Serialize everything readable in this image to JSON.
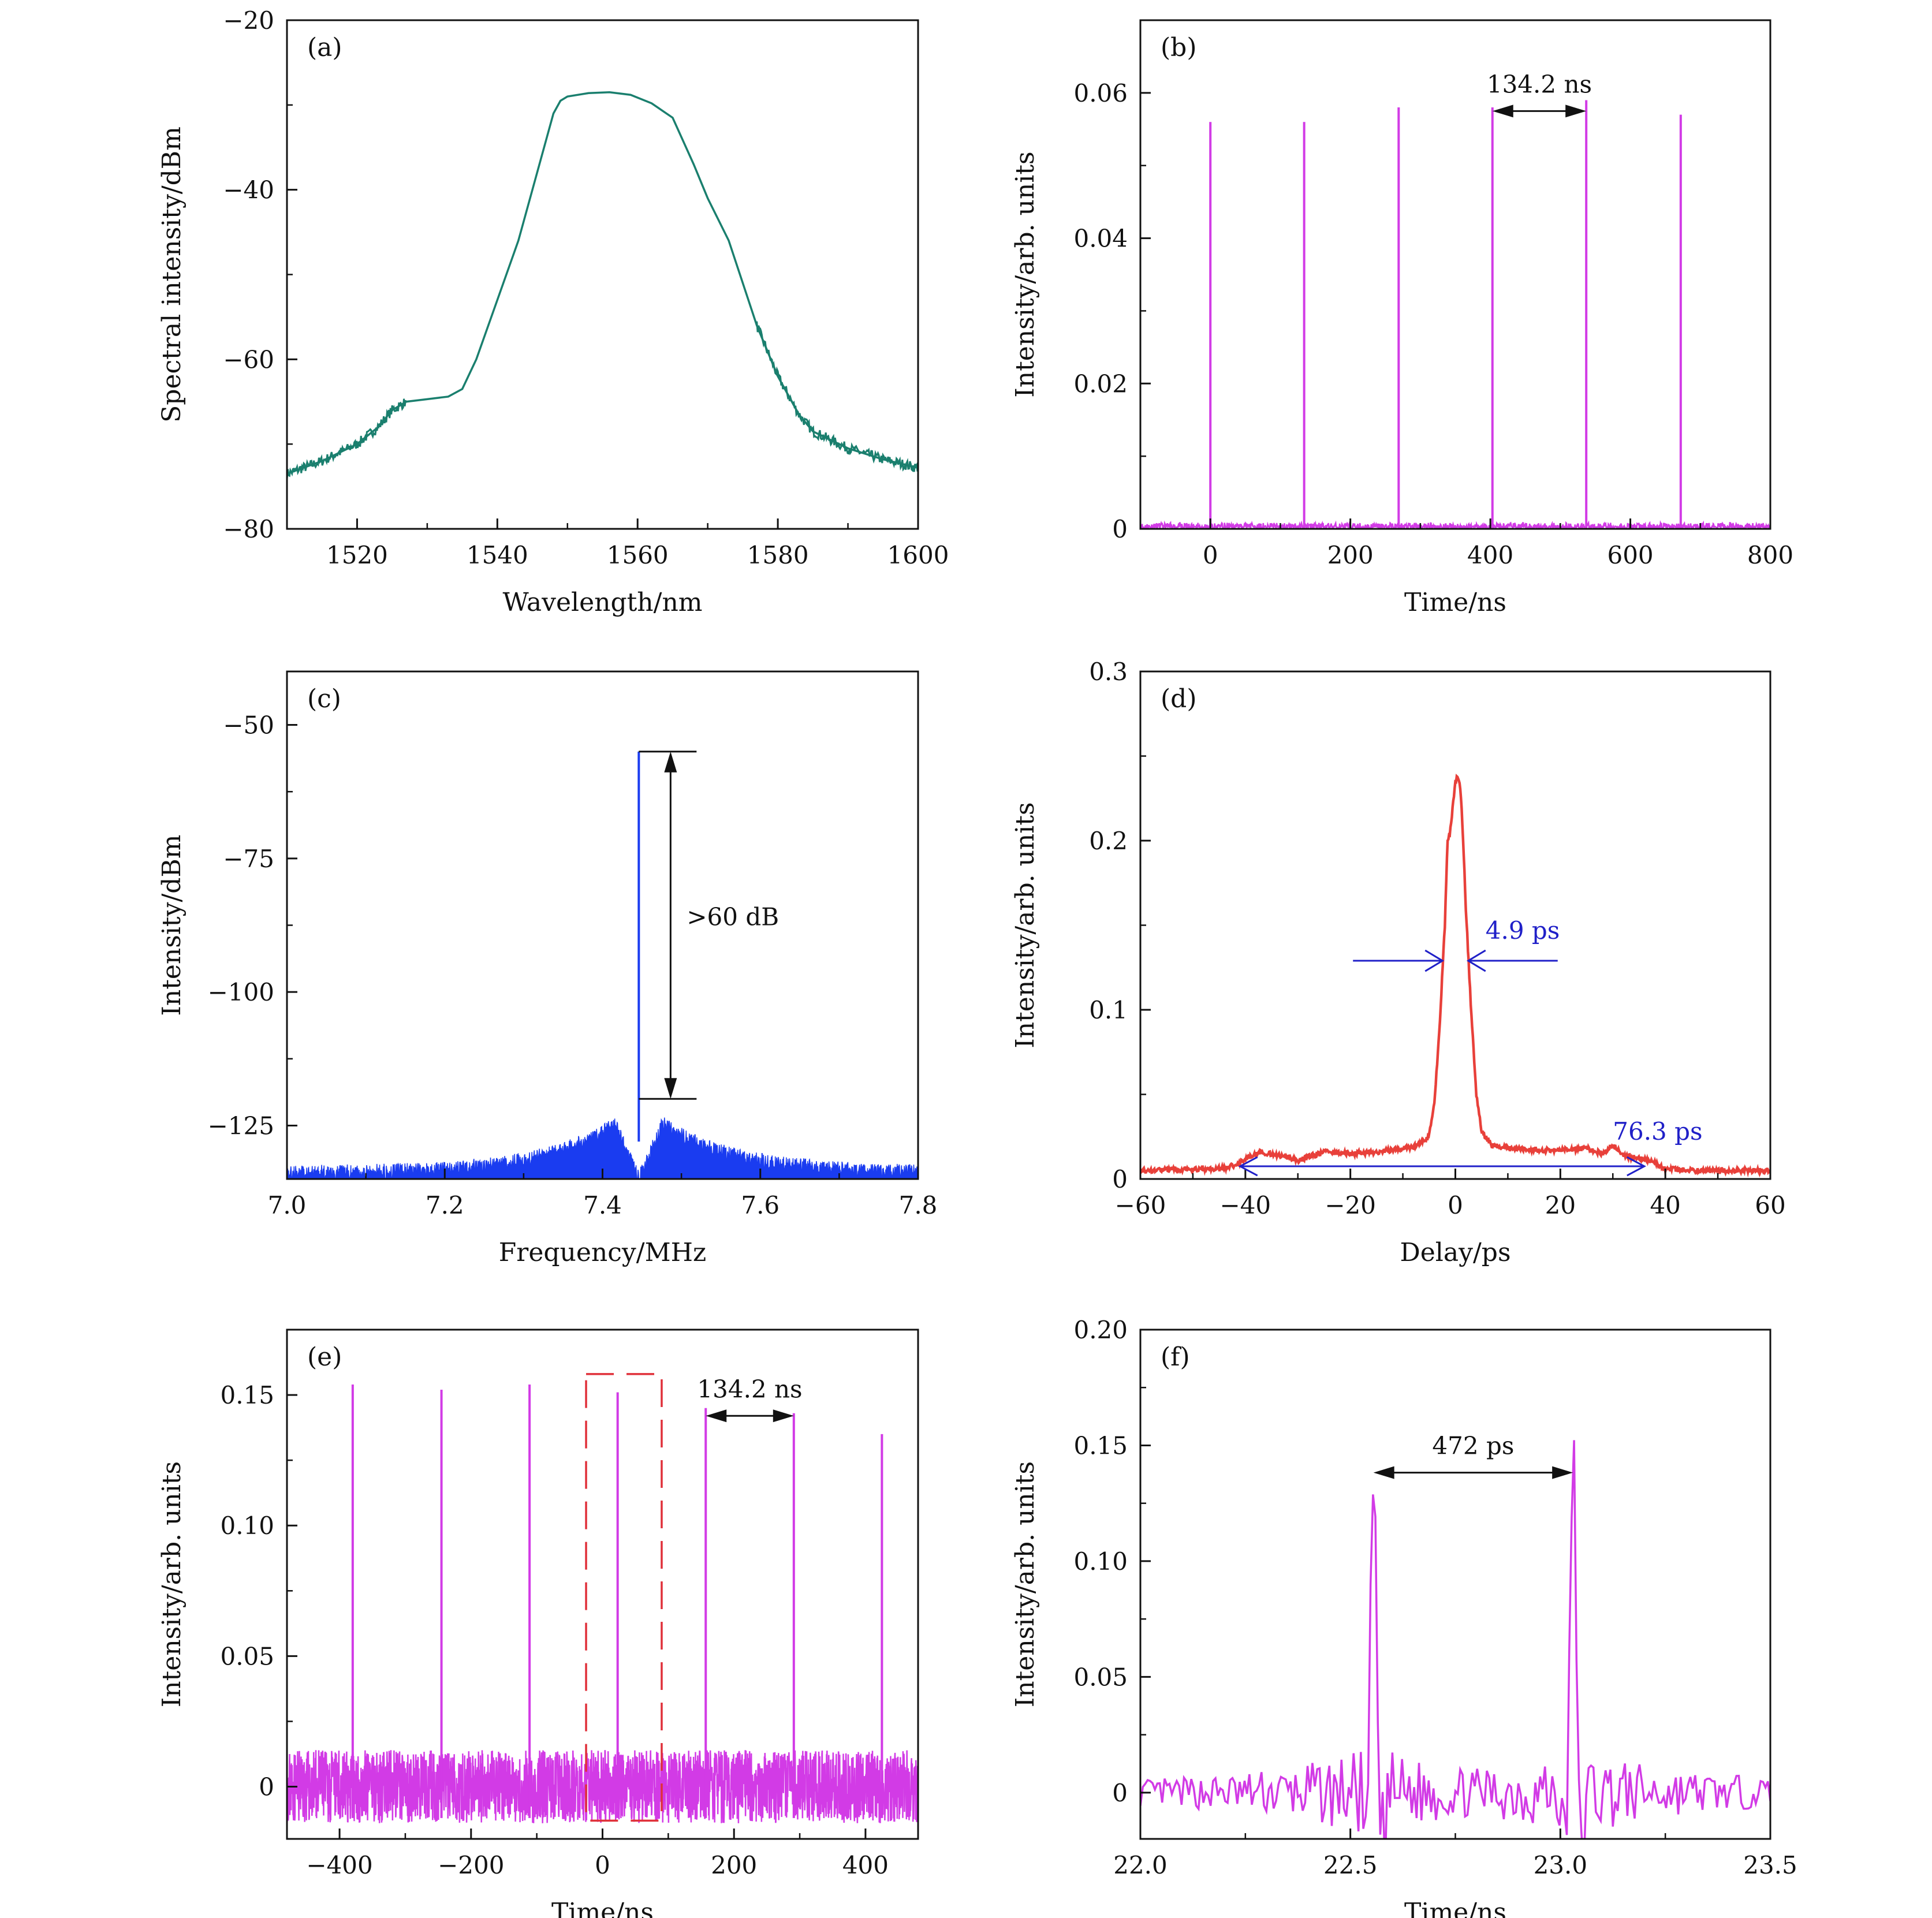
{
  "chart_data": [
    {
      "panel": "(a)",
      "type": "line",
      "xlabel": "Wavelength/nm",
      "ylabel": "Spectral intensity/dBm",
      "xlim": [
        1510,
        1600
      ],
      "ylim": [
        -80,
        -20
      ],
      "xticks": [
        1520,
        1540,
        1560,
        1580,
        1600
      ],
      "yticks": [
        -80,
        -60,
        -40,
        -20
      ],
      "ytick_labels": [
        "−80",
        "−60",
        "−40",
        "−20"
      ],
      "color": "#1a7f6e",
      "x": [
        1510,
        1515,
        1520,
        1523,
        1525,
        1527,
        1530,
        1533,
        1535,
        1537,
        1540,
        1543,
        1545,
        1547,
        1548,
        1549,
        1550,
        1553,
        1556,
        1559,
        1562,
        1565,
        1568,
        1570,
        1573,
        1575,
        1577,
        1580,
        1583,
        1585,
        1590,
        1595,
        1600
      ],
      "y": [
        -73.5,
        -72,
        -70,
        -68,
        -66,
        -65,
        -64.7,
        -64.4,
        -63.5,
        -60,
        -53,
        -46,
        -40,
        -34,
        -31,
        -29.5,
        -29,
        -28.6,
        -28.5,
        -28.8,
        -29.8,
        -31.5,
        -37,
        -41,
        -46,
        -51,
        -56,
        -62,
        -66.5,
        -68.5,
        -70.5,
        -71.8,
        -72.8
      ]
    },
    {
      "panel": "(b)",
      "type": "line",
      "xlabel": "Time/ns",
      "ylabel": "Intensity/arb. units",
      "xlim": [
        -100,
        800
      ],
      "ylim": [
        0,
        0.07
      ],
      "xticks": [
        0,
        200,
        400,
        600,
        800
      ],
      "yticks": [
        0,
        0.02,
        0.04,
        0.06
      ],
      "ytick_labels": [
        "0",
        "0.02",
        "0.04",
        "0.06"
      ],
      "color": "#d23be6",
      "peaks": [
        {
          "x": 0,
          "y": 0.056
        },
        {
          "x": 134,
          "y": 0.056
        },
        {
          "x": 269,
          "y": 0.058
        },
        {
          "x": 403,
          "y": 0.058
        },
        {
          "x": 537,
          "y": 0.059
        },
        {
          "x": 672,
          "y": 0.057
        }
      ],
      "noise_level": 0.0008,
      "annotation": {
        "text": "134.2 ns",
        "x1": 403,
        "x2": 537,
        "y": 0.0575
      }
    },
    {
      "panel": "(c)",
      "type": "area",
      "xlabel": "Frequency/MHz",
      "ylabel": "Intensity/dBm",
      "xlim": [
        7.0,
        7.8
      ],
      "ylim": [
        -135,
        -40
      ],
      "xticks": [
        7.0,
        7.2,
        7.4,
        7.6,
        7.8
      ],
      "xtick_labels": [
        "7.0",
        "7.2",
        "7.4",
        "7.6",
        "7.8"
      ],
      "yticks": [
        -125,
        -100,
        -75,
        -50
      ],
      "ytick_labels": [
        "−125",
        "−100",
        "−75",
        "−50"
      ],
      "color": "#1a3cf0",
      "peak": {
        "x": 7.446,
        "y": -55
      },
      "annotation": {
        "text": ">60 dB",
        "top": -55,
        "bottom": -120
      }
    },
    {
      "panel": "(d)",
      "type": "line",
      "xlabel": "Delay/ps",
      "ylabel": "Intensity/arb. units",
      "xlim": [
        -60,
        60
      ],
      "ylim": [
        0,
        0.3
      ],
      "xticks": [
        -60,
        -40,
        -20,
        0,
        20,
        40,
        60
      ],
      "xtick_labels": [
        "−60",
        "−40",
        "−20",
        "0",
        "20",
        "40",
        "60"
      ],
      "yticks": [
        0,
        0.1,
        0.2,
        0.3
      ],
      "ytick_labels": [
        "0",
        "0.1",
        "0.2",
        "0.3"
      ],
      "color": "#e8403a",
      "x": [
        -60,
        -45,
        -42,
        -40,
        -37,
        -34,
        -30,
        -25,
        -20,
        -15,
        -10,
        -7,
        -5,
        -4,
        -3,
        -2,
        -1.5,
        -1,
        -0.5,
        0,
        0.5,
        1,
        1.5,
        2,
        3,
        4,
        5,
        7,
        10,
        15,
        20,
        25,
        28,
        30,
        32,
        35,
        38,
        40,
        45,
        60
      ],
      "y": [
        0.005,
        0.006,
        0.008,
        0.012,
        0.016,
        0.014,
        0.011,
        0.016,
        0.015,
        0.016,
        0.018,
        0.02,
        0.025,
        0.045,
        0.09,
        0.15,
        0.2,
        0.205,
        0.22,
        0.235,
        0.238,
        0.23,
        0.2,
        0.16,
        0.1,
        0.05,
        0.028,
        0.02,
        0.018,
        0.017,
        0.017,
        0.018,
        0.015,
        0.02,
        0.014,
        0.012,
        0.01,
        0.006,
        0.005,
        0.005
      ],
      "annotations": [
        {
          "text": "4.9 ps",
          "y": 0.129,
          "x1": -2.45,
          "x2": 2.45
        },
        {
          "text": "76.3 ps",
          "y": 0.0075,
          "x1": -41,
          "x2": 36
        }
      ]
    },
    {
      "panel": "(e)",
      "type": "line",
      "xlabel": "Time/ns",
      "ylabel": "Intensity/arb. units",
      "xlim": [
        -480,
        480
      ],
      "ylim": [
        -0.02,
        0.175
      ],
      "xticks": [
        -400,
        -200,
        0,
        200,
        400
      ],
      "xtick_labels": [
        "−400",
        "−200",
        "0",
        "200",
        "400"
      ],
      "yticks": [
        0,
        0.05,
        0.1,
        0.15
      ],
      "ytick_labels": [
        "0",
        "0.05",
        "0.10",
        "0.15"
      ],
      "color": "#d23be6",
      "peaks": [
        {
          "x": -380,
          "y": 0.154
        },
        {
          "x": -245,
          "y": 0.152
        },
        {
          "x": -111,
          "y": 0.154
        },
        {
          "x": 23,
          "y": 0.151
        },
        {
          "x": 157,
          "y": 0.145
        },
        {
          "x": 291,
          "y": 0.143
        },
        {
          "x": 425,
          "y": 0.135
        }
      ],
      "noise_level": 0.014,
      "dashed_box": {
        "x1": -25,
        "x2": 90,
        "y1": -0.013,
        "y2": 0.158
      },
      "annotation": {
        "text": "134.2 ns",
        "x1": 157,
        "x2": 291,
        "y": 0.142
      }
    },
    {
      "panel": "(f)",
      "type": "line",
      "xlabel": "Time/ns",
      "ylabel": "Intensity/arb. units",
      "xlim": [
        22.0,
        23.5
      ],
      "ylim": [
        -0.02,
        0.2
      ],
      "xticks": [
        22.0,
        22.5,
        23.0,
        23.5
      ],
      "xtick_labels": [
        "22.0",
        "22.5",
        "23.0",
        "23.5"
      ],
      "yticks": [
        0,
        0.05,
        0.1,
        0.15,
        0.2
      ],
      "ytick_labels": [
        "0",
        "0.05",
        "0.10",
        "0.15",
        "0.20"
      ],
      "color": "#d23be6",
      "peaks": [
        {
          "x": 22.555,
          "y": 0.137
        },
        {
          "x": 23.03,
          "y": 0.15
        }
      ],
      "annotation": {
        "text": "472 ps",
        "x1": 22.555,
        "x2": 23.03,
        "y": 0.137
      }
    }
  ]
}
